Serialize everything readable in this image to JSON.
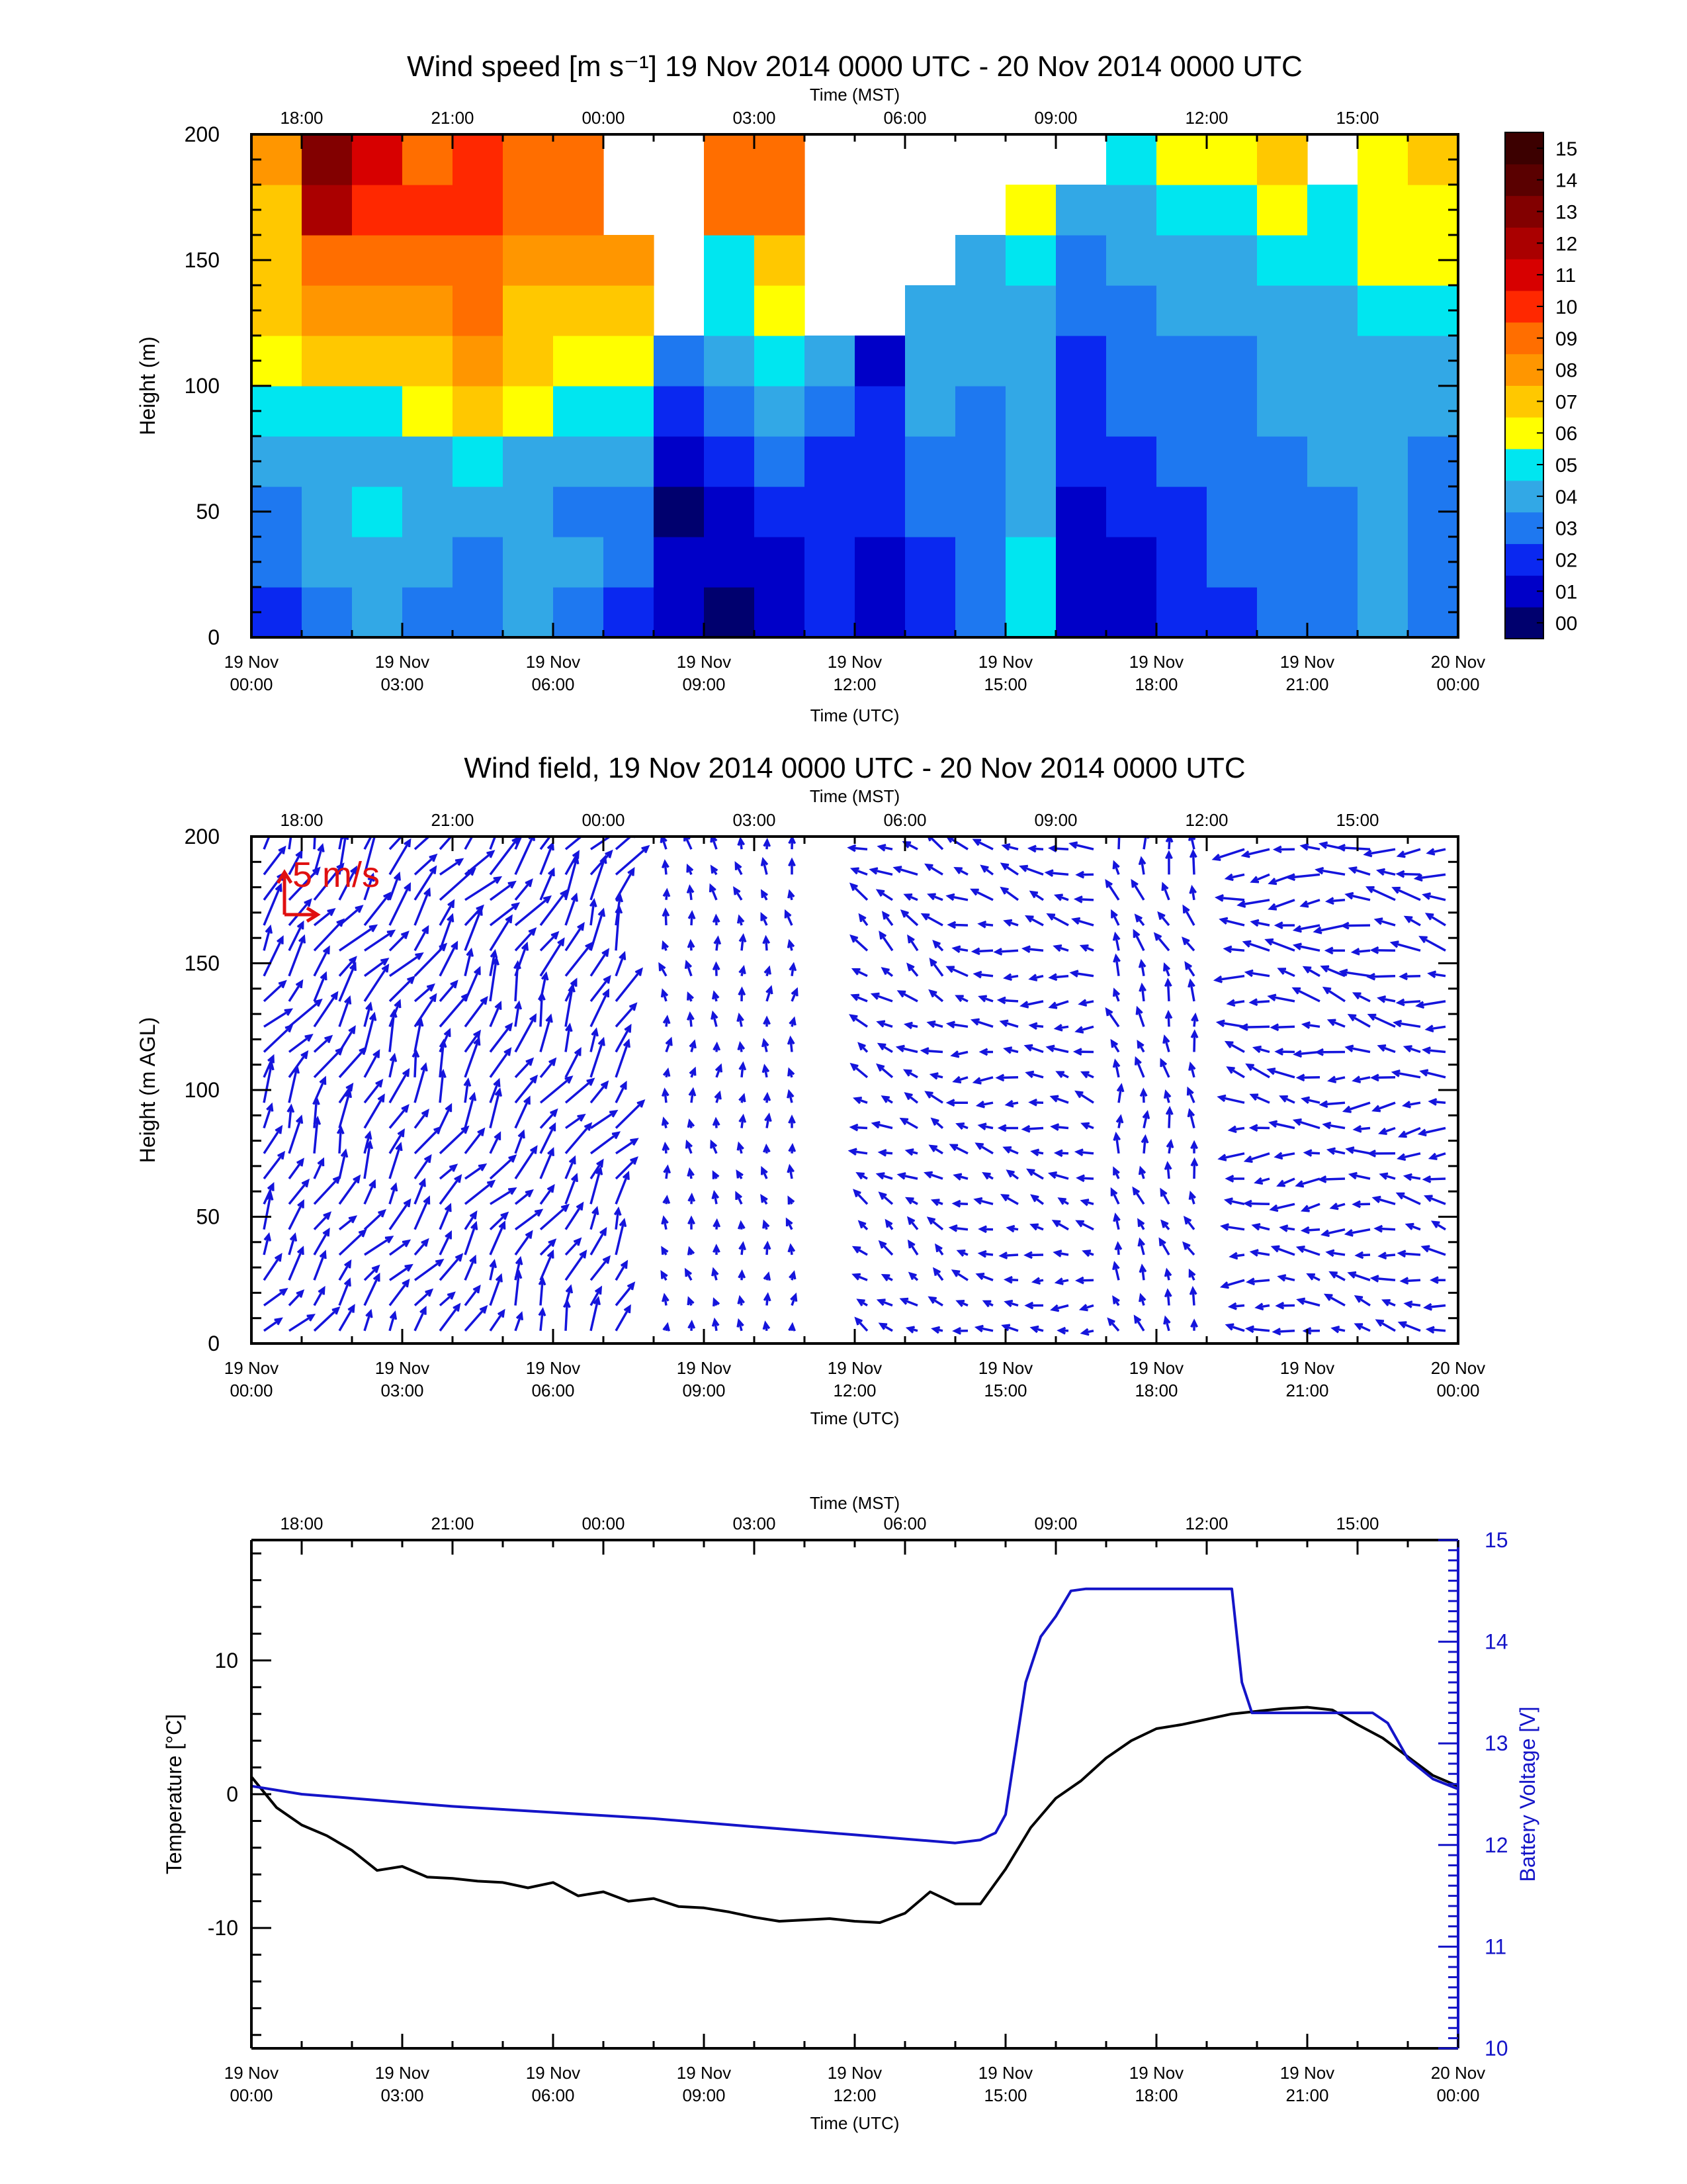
{
  "chart_data": [
    {
      "type": "heatmap",
      "title": "Wind speed [m s⁻¹] 19 Nov 2014 0000 UTC - 20 Nov 2014 0000 UTC",
      "top_axis_label": "Time (MST)",
      "top_ticks": [
        "18:00",
        "21:00",
        "00:00",
        "03:00",
        "06:00",
        "09:00",
        "12:00",
        "15:00"
      ],
      "xlabel": "Time (UTC)",
      "bottom_ticks": [
        [
          "19 Nov",
          "00:00"
        ],
        [
          "19 Nov",
          "03:00"
        ],
        [
          "19 Nov",
          "06:00"
        ],
        [
          "19 Nov",
          "09:00"
        ],
        [
          "19 Nov",
          "12:00"
        ],
        [
          "19 Nov",
          "15:00"
        ],
        [
          "19 Nov",
          "18:00"
        ],
        [
          "19 Nov",
          "21:00"
        ],
        [
          "20 Nov",
          "00:00"
        ]
      ],
      "xlim_hours_utc": [
        0,
        24
      ],
      "ylabel": "Height (m)",
      "ylim": [
        0,
        200
      ],
      "yticks": [
        "0",
        "50",
        "100",
        "150",
        "200"
      ],
      "colorbar": {
        "labels": [
          "00",
          "01",
          "02",
          "03",
          "04",
          "05",
          "06",
          "07",
          "08",
          "09",
          "10",
          "11",
          "12",
          "13",
          "14",
          "15"
        ],
        "colors": [
          "#00006e",
          "#0000c8",
          "#0a28f0",
          "#1e78f0",
          "#32a8e6",
          "#00e6f0",
          "#ffff00",
          "#ffc800",
          "#ff9600",
          "#ff6e00",
          "#ff2800",
          "#d70000",
          "#aa0000",
          "#820000",
          "#5a0000",
          "#3c0000"
        ]
      },
      "heights_m": [
        10,
        30,
        50,
        70,
        90,
        110,
        130,
        150,
        170,
        190
      ],
      "times_utc_hours": [
        0.5,
        1.5,
        2.5,
        3.5,
        4.5,
        5.5,
        6.5,
        7.5,
        8.5,
        9.5,
        10.5,
        11.5,
        12.5,
        13.5,
        14.5,
        15.5,
        16.5,
        17.5,
        18.5,
        19.5,
        20.5,
        21.5,
        22.5,
        23.5
      ],
      "speed_columns_ms": [
        [
          2,
          3,
          3,
          4,
          5,
          6,
          7,
          7,
          7,
          8
        ],
        [
          3,
          4,
          4,
          4,
          5,
          7,
          8,
          9,
          12,
          13
        ],
        [
          4,
          4,
          5,
          4,
          5,
          7,
          8,
          9,
          10,
          11
        ],
        [
          3,
          4,
          4,
          4,
          6,
          7,
          8,
          9,
          10,
          9
        ],
        [
          3,
          3,
          4,
          5,
          7,
          8,
          9,
          9,
          10,
          10
        ],
        [
          4,
          4,
          4,
          4,
          6,
          7,
          7,
          8,
          9,
          9
        ],
        [
          3,
          4,
          3,
          4,
          5,
          6,
          7,
          8,
          9,
          9
        ],
        [
          2,
          3,
          3,
          4,
          5,
          6,
          7,
          8,
          null,
          null
        ],
        [
          1,
          1,
          0,
          1,
          2,
          3,
          null,
          null,
          null,
          null
        ],
        [
          0,
          1,
          1,
          2,
          3,
          4,
          5,
          5,
          9,
          9
        ],
        [
          1,
          1,
          2,
          3,
          4,
          5,
          6,
          7,
          9,
          9
        ],
        [
          2,
          2,
          2,
          2,
          3,
          4,
          null,
          null,
          null,
          null
        ],
        [
          1,
          1,
          2,
          2,
          2,
          1,
          null,
          null,
          null,
          null
        ],
        [
          2,
          2,
          3,
          3,
          4,
          4,
          4,
          null,
          null,
          null
        ],
        [
          3,
          3,
          3,
          3,
          3,
          4,
          4,
          4,
          null,
          null
        ],
        [
          5,
          5,
          4,
          4,
          4,
          4,
          4,
          5,
          6,
          null
        ],
        [
          1,
          1,
          1,
          2,
          2,
          2,
          3,
          3,
          4,
          null
        ],
        [
          1,
          1,
          2,
          2,
          3,
          3,
          3,
          4,
          4,
          5
        ],
        [
          2,
          2,
          2,
          3,
          3,
          3,
          4,
          4,
          5,
          6
        ],
        [
          2,
          3,
          3,
          3,
          3,
          3,
          4,
          4,
          5,
          6
        ],
        [
          3,
          3,
          3,
          3,
          4,
          4,
          4,
          5,
          6,
          7
        ],
        [
          3,
          3,
          3,
          4,
          4,
          4,
          4,
          5,
          5,
          null
        ],
        [
          4,
          4,
          4,
          4,
          4,
          4,
          5,
          6,
          6,
          6
        ],
        [
          3,
          3,
          3,
          3,
          4,
          4,
          5,
          6,
          6,
          7
        ]
      ]
    },
    {
      "type": "vector",
      "title": "Wind field, 19 Nov 2014 0000 UTC - 20 Nov 2014 0000 UTC",
      "top_axis_label": "Time (MST)",
      "top_ticks": [
        "18:00",
        "21:00",
        "00:00",
        "03:00",
        "06:00",
        "09:00",
        "12:00",
        "15:00"
      ],
      "xlabel": "Time (UTC)",
      "bottom_ticks": [
        [
          "19 Nov",
          "00:00"
        ],
        [
          "19 Nov",
          "03:00"
        ],
        [
          "19 Nov",
          "06:00"
        ],
        [
          "19 Nov",
          "09:00"
        ],
        [
          "19 Nov",
          "12:00"
        ],
        [
          "19 Nov",
          "15:00"
        ],
        [
          "19 Nov",
          "18:00"
        ],
        [
          "19 Nov",
          "21:00"
        ],
        [
          "20 Nov",
          "00:00"
        ]
      ],
      "xlim_hours_utc": [
        0,
        24
      ],
      "ylabel": "Height (m AGL)",
      "ylim": [
        0,
        200
      ],
      "yticks": [
        "0",
        "50",
        "100",
        "150",
        "200"
      ],
      "reference_vector_label": "5 m/s",
      "reference_color": "#e01010",
      "arrow_color": "#1414dc",
      "arrow_time_step_hours": 0.5,
      "arrow_height_step_m": 10,
      "arrow_missing_spans_utc": [
        [
          7.5,
          8.0
        ],
        [
          11.0,
          12.0
        ],
        [
          16.8,
          17.2
        ],
        [
          19.0,
          19.5
        ]
      ],
      "direction_segments": [
        {
          "t0": 0,
          "t1": 8,
          "dir_deg": 210,
          "speed_ms": 6
        },
        {
          "t0": 8,
          "t1": 12,
          "dir_deg": 175,
          "speed_ms": 2
        },
        {
          "t0": 12,
          "t1": 14,
          "dir_deg": 120,
          "speed_ms": 3
        },
        {
          "t0": 14,
          "t1": 17,
          "dir_deg": 100,
          "speed_ms": 3
        },
        {
          "t0": 17,
          "t1": 19.5,
          "dir_deg": 165,
          "speed_ms": 3
        },
        {
          "t0": 19.5,
          "t1": 24,
          "dir_deg": 95,
          "speed_ms": 4
        }
      ]
    },
    {
      "type": "line",
      "top_axis_label": "Time (MST)",
      "top_ticks": [
        "18:00",
        "21:00",
        "00:00",
        "03:00",
        "06:00",
        "09:00",
        "12:00",
        "15:00"
      ],
      "xlabel": "Time (UTC)",
      "bottom_ticks": [
        [
          "19 Nov",
          "00:00"
        ],
        [
          "19 Nov",
          "03:00"
        ],
        [
          "19 Nov",
          "06:00"
        ],
        [
          "19 Nov",
          "09:00"
        ],
        [
          "19 Nov",
          "12:00"
        ],
        [
          "19 Nov",
          "15:00"
        ],
        [
          "19 Nov",
          "18:00"
        ],
        [
          "19 Nov",
          "21:00"
        ],
        [
          "20 Nov",
          "00:00"
        ]
      ],
      "xlim_hours_utc": [
        0,
        24
      ],
      "ylabel_left": "Temperature [°C]",
      "ylim_left": [
        -19,
        19
      ],
      "yticks_left": [
        "10",
        "0",
        "-10"
      ],
      "ylabel_right": "Battery Voltage [V]",
      "ylim_right": [
        10,
        15
      ],
      "yticks_right": [
        "15",
        "14",
        "13",
        "12",
        "11",
        "10"
      ],
      "right_axis_color": "#1414c8",
      "series": [
        {
          "name": "Temperature",
          "axis": "left",
          "color": "#000000",
          "x": [
            0,
            0.5,
            1.0,
            1.5,
            2.0,
            2.5,
            3.0,
            3.5,
            4.0,
            4.5,
            5.0,
            5.5,
            6.0,
            6.5,
            7.0,
            7.5,
            8.0,
            8.5,
            9.0,
            9.5,
            10.0,
            10.5,
            11.0,
            11.5,
            12.0,
            12.5,
            13.0,
            13.5,
            14.0,
            14.5,
            15.0,
            15.5,
            16.0,
            16.5,
            17.0,
            17.5,
            18.0,
            18.5,
            19.0,
            19.5,
            20.0,
            20.5,
            21.0,
            21.5,
            22.0,
            22.5,
            23.0,
            23.5,
            24.0
          ],
          "y": [
            1.3,
            -1.0,
            -2.3,
            -3.1,
            -4.2,
            -5.7,
            -5.4,
            -6.2,
            -6.3,
            -6.5,
            -6.6,
            -7.0,
            -6.6,
            -7.6,
            -7.3,
            -8.0,
            -7.8,
            -8.4,
            -8.5,
            -8.8,
            -9.2,
            -9.5,
            -9.4,
            -9.3,
            -9.5,
            -9.6,
            -8.9,
            -7.3,
            -8.2,
            -8.2,
            -5.6,
            -2.5,
            -0.3,
            1.0,
            2.7,
            4.0,
            4.9,
            5.2,
            5.6,
            6.0,
            6.2,
            6.4,
            6.5,
            6.3,
            5.2,
            4.2,
            2.8,
            1.4,
            0.6
          ]
        },
        {
          "name": "Battery Voltage",
          "axis": "right",
          "color": "#1414c8",
          "x": [
            0,
            1,
            2,
            3,
            4,
            5,
            6,
            7,
            8,
            9,
            10,
            11,
            12,
            13,
            14,
            14.5,
            14.8,
            15.0,
            15.4,
            15.7,
            16.0,
            16.3,
            16.6,
            17.0,
            17.5,
            18.0,
            18.5,
            19.0,
            19.5,
            19.7,
            19.9,
            20.5,
            21.0,
            21.5,
            22.0,
            22.3,
            22.6,
            23.0,
            23.5,
            24.0
          ],
          "y": [
            12.58,
            12.5,
            12.46,
            12.42,
            12.38,
            12.35,
            12.32,
            12.29,
            12.26,
            12.22,
            12.18,
            12.14,
            12.1,
            12.06,
            12.02,
            12.05,
            12.12,
            12.3,
            13.6,
            14.05,
            14.25,
            14.5,
            14.52,
            14.52,
            14.52,
            14.52,
            14.52,
            14.52,
            14.52,
            13.6,
            13.3,
            13.3,
            13.3,
            13.3,
            13.3,
            13.3,
            13.2,
            12.85,
            12.65,
            12.55
          ]
        }
      ]
    }
  ]
}
